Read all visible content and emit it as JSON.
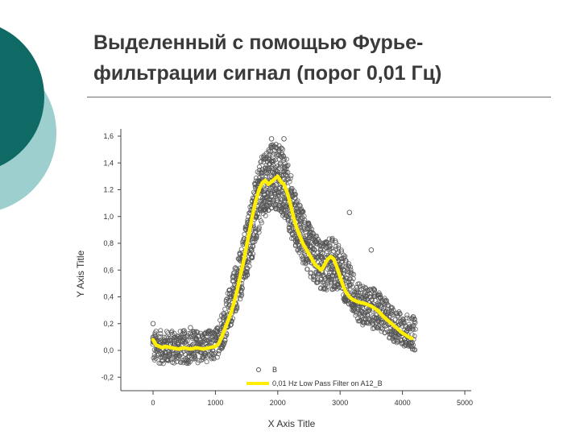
{
  "slide": {
    "title_line1": "Выделенный с помощью Фурье-",
    "title_line2": "фильтрации сигнал (порог 0,01 Гц)"
  },
  "theme": {
    "teal_dark": "#0f6a66",
    "teal_light": "#9ccfcd",
    "filter_color": "#ffee00"
  },
  "chart_data": {
    "type": "scatter",
    "xlabel": "X Axis Title",
    "ylabel": "Y Axis Title",
    "xlim": [
      -200,
      5000
    ],
    "ylim": [
      -0.3,
      1.6
    ],
    "x_ticks": [
      {
        "v": 0,
        "label": "0"
      },
      {
        "v": 1000,
        "label": "1000"
      },
      {
        "v": 2000,
        "label": "2000"
      },
      {
        "v": 3000,
        "label": "3000"
      },
      {
        "v": 4000,
        "label": "4000"
      },
      {
        "v": 5000,
        "label": "5000"
      }
    ],
    "y_ticks": [
      {
        "v": -0.2,
        "label": "-0,2"
      },
      {
        "v": 0.0,
        "label": "0,0"
      },
      {
        "v": 0.2,
        "label": "0,2"
      },
      {
        "v": 0.4,
        "label": "0,4"
      },
      {
        "v": 0.6,
        "label": "0,6"
      },
      {
        "v": 0.8,
        "label": "0,8"
      },
      {
        "v": 1.0,
        "label": "1,0"
      },
      {
        "v": 1.2,
        "label": "1.2"
      },
      {
        "v": 1.4,
        "label": "1,4"
      },
      {
        "v": 1.6,
        "label": "1,6"
      }
    ],
    "legend_placement": "bottom",
    "series": [
      {
        "name": "B",
        "kind": "scatter",
        "color": "#555555",
        "envelope": [
          {
            "x": 0,
            "low": -0.1,
            "high": 0.15
          },
          {
            "x": 300,
            "low": -0.1,
            "high": 0.15
          },
          {
            "x": 600,
            "low": -0.1,
            "high": 0.15
          },
          {
            "x": 1000,
            "low": -0.08,
            "high": 0.15
          },
          {
            "x": 1150,
            "low": 0.05,
            "high": 0.35
          },
          {
            "x": 1300,
            "low": 0.25,
            "high": 0.6
          },
          {
            "x": 1450,
            "low": 0.45,
            "high": 0.85
          },
          {
            "x": 1600,
            "low": 0.7,
            "high": 1.2
          },
          {
            "x": 1750,
            "low": 0.95,
            "high": 1.45
          },
          {
            "x": 1900,
            "low": 1.05,
            "high": 1.55
          },
          {
            "x": 2000,
            "low": 1.05,
            "high": 1.55
          },
          {
            "x": 2100,
            "low": 1.0,
            "high": 1.5
          },
          {
            "x": 2300,
            "low": 0.75,
            "high": 1.15
          },
          {
            "x": 2500,
            "low": 0.55,
            "high": 0.95
          },
          {
            "x": 2700,
            "low": 0.45,
            "high": 0.8
          },
          {
            "x": 2900,
            "low": 0.45,
            "high": 0.85
          },
          {
            "x": 3100,
            "low": 0.35,
            "high": 0.7
          },
          {
            "x": 3300,
            "low": 0.2,
            "high": 0.5
          },
          {
            "x": 3600,
            "low": 0.15,
            "high": 0.45
          },
          {
            "x": 3900,
            "low": 0.05,
            "high": 0.3
          },
          {
            "x": 4200,
            "low": 0.0,
            "high": 0.25
          }
        ],
        "outliers": [
          {
            "x": 0,
            "y": 0.2
          },
          {
            "x": 1900,
            "y": 1.58
          },
          {
            "x": 2100,
            "y": 1.58
          },
          {
            "x": 3150,
            "y": 1.03
          },
          {
            "x": 3500,
            "y": 0.75
          },
          {
            "x": 4050,
            "y": 0.18
          },
          {
            "x": 600,
            "y": 0.17
          },
          {
            "x": 4150,
            "y": 0.03
          }
        ]
      },
      {
        "name": "0,01 Hz Low Pass Filter on A12_B",
        "kind": "line",
        "color": "#ffee00",
        "x": [
          0,
          50,
          100,
          150,
          200,
          300,
          400,
          500,
          600,
          700,
          800,
          900,
          1000,
          1050,
          1100,
          1150,
          1200,
          1250,
          1300,
          1350,
          1400,
          1450,
          1500,
          1550,
          1600,
          1650,
          1700,
          1750,
          1800,
          1850,
          1900,
          1950,
          2000,
          2050,
          2100,
          2150,
          2200,
          2250,
          2300,
          2350,
          2400,
          2450,
          2500,
          2550,
          2600,
          2650,
          2700,
          2750,
          2800,
          2850,
          2900,
          2950,
          3000,
          3050,
          3100,
          3150,
          3200,
          3250,
          3300,
          3400,
          3500,
          3600,
          3700,
          3800,
          3900,
          4000,
          4100,
          4150
        ],
        "y": [
          0.08,
          0.04,
          0.03,
          0.02,
          0.03,
          0.02,
          0.01,
          0.02,
          0.01,
          0.02,
          0.01,
          0.02,
          0.03,
          0.05,
          0.1,
          0.16,
          0.22,
          0.28,
          0.36,
          0.45,
          0.56,
          0.66,
          0.78,
          0.9,
          1.02,
          1.12,
          1.2,
          1.25,
          1.27,
          1.24,
          1.26,
          1.28,
          1.3,
          1.26,
          1.24,
          1.18,
          1.1,
          1.0,
          0.92,
          0.86,
          0.8,
          0.76,
          0.72,
          0.68,
          0.64,
          0.62,
          0.6,
          0.64,
          0.68,
          0.7,
          0.68,
          0.62,
          0.55,
          0.48,
          0.43,
          0.4,
          0.38,
          0.37,
          0.36,
          0.35,
          0.33,
          0.3,
          0.25,
          0.21,
          0.17,
          0.13,
          0.1,
          0.09
        ]
      }
    ]
  }
}
